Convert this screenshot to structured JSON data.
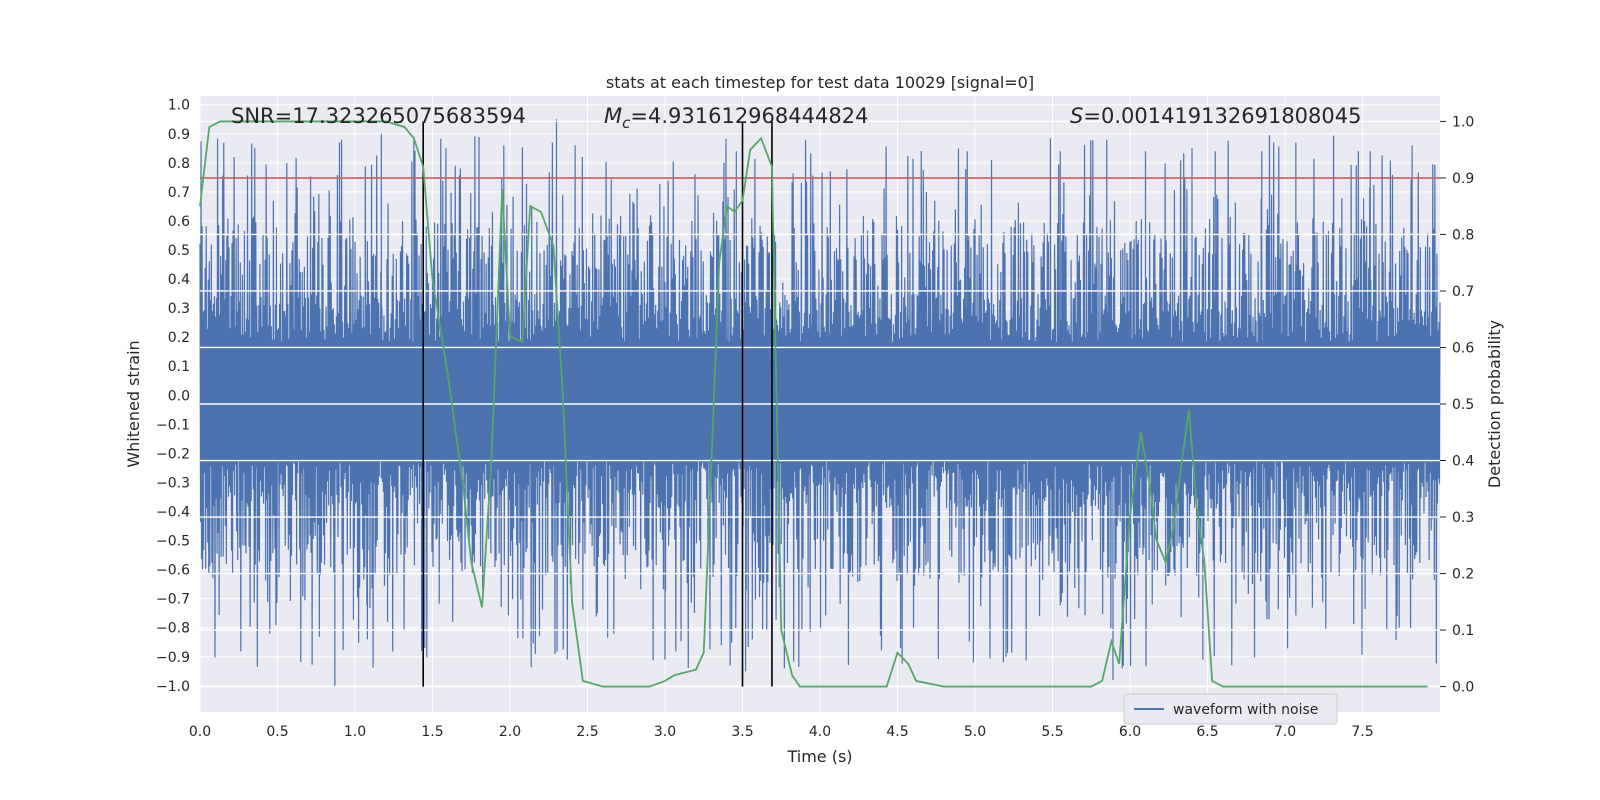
{
  "chart_data": {
    "type": "line",
    "title": "stats at each timestep for test data 10029 [signal=0]",
    "xlabel": "Time (s)",
    "ylabel": "Whitened strain",
    "y2label": "Detection probability",
    "xlim": [
      0.0,
      8.0
    ],
    "ylim": [
      -1.09,
      1.03
    ],
    "y2lim": [
      -0.045,
      1.045
    ],
    "xticks": [
      0.0,
      0.5,
      1.0,
      1.5,
      2.0,
      2.5,
      3.0,
      3.5,
      4.0,
      4.5,
      5.0,
      5.5,
      6.0,
      6.5,
      7.0,
      7.5
    ],
    "yticks": [
      1.0,
      0.9,
      0.8,
      0.7,
      0.6,
      0.5,
      0.4,
      0.3,
      0.2,
      0.1,
      0.0,
      -0.1,
      -0.2,
      -0.3,
      -0.4,
      -0.5,
      -0.6,
      -0.7,
      -0.8,
      -0.9,
      -1.0
    ],
    "y2ticks": [
      1.0,
      0.9,
      0.8,
      0.7,
      0.6,
      0.5,
      0.4,
      0.3,
      0.2,
      0.1,
      0.0
    ],
    "legend": {
      "label": "waveform with noise",
      "loc": "lower right"
    },
    "annotations": [
      {
        "id": "snr",
        "prefix": "SNR=",
        "value": "17.323265075683594"
      },
      {
        "id": "mc",
        "prefix": "=",
        "symbol": "M",
        "sub": "c",
        "value": "4.931612968444824"
      },
      {
        "id": "s",
        "prefix": "=",
        "symbol": "S",
        "value": "0.001419132691808045"
      }
    ],
    "threshold": {
      "y2": 0.9,
      "color": "#c44e52"
    },
    "vlines": {
      "x": [
        1.44,
        3.5,
        3.69
      ],
      "color": "#000000"
    },
    "series": [
      {
        "name": "waveform with noise",
        "color": "#4c72b0",
        "type": "strain",
        "seed": 10029,
        "samples": 2400,
        "base_amp": 0.37,
        "spike_events": [
          {
            "x": 0.87,
            "y": -1.0
          },
          {
            "x": 1.45,
            "y": -0.87
          },
          {
            "x": 2.3,
            "y": 0.95
          },
          {
            "x": 0.9,
            "y": 0.87
          },
          {
            "x": 1.17,
            "y": 0.9
          },
          {
            "x": 1.38,
            "y": 0.89
          },
          {
            "x": 1.96,
            "y": 0.86
          },
          {
            "x": 2.42,
            "y": 0.86
          },
          {
            "x": 1.08,
            "y": -0.84
          },
          {
            "x": 3.0,
            "y": -0.91
          },
          {
            "x": 3.42,
            "y": -0.93
          },
          {
            "x": 3.52,
            "y": -0.95
          },
          {
            "x": 3.38,
            "y": 0.8
          },
          {
            "x": 3.46,
            "y": 0.84
          },
          {
            "x": 4.52,
            "y": -0.87
          },
          {
            "x": 5.2,
            "y": -0.9
          },
          {
            "x": 5.89,
            "y": -0.98
          },
          {
            "x": 5.95,
            "y": -0.94
          },
          {
            "x": 5.85,
            "y": 0.88
          },
          {
            "x": 5.55,
            "y": 0.84
          },
          {
            "x": 6.1,
            "y": 0.84
          },
          {
            "x": 6.4,
            "y": 0.85
          },
          {
            "x": 6.55,
            "y": 0.84
          },
          {
            "x": 6.85,
            "y": 0.84
          },
          {
            "x": 7.07,
            "y": 0.87
          },
          {
            "x": 7.55,
            "y": 0.84
          },
          {
            "x": 7.82,
            "y": 0.86
          },
          {
            "x": 4.95,
            "y": 0.84
          },
          {
            "x": 6.47,
            "y": -0.91
          },
          {
            "x": 1.21,
            "y": -0.78
          }
        ]
      },
      {
        "name": "detection probability",
        "color": "#55a868",
        "axis": "right",
        "x": [
          0.0,
          0.06,
          0.13,
          0.25,
          0.5,
          0.75,
          1.0,
          1.2,
          1.32,
          1.38,
          1.44,
          1.5,
          1.6,
          1.7,
          1.75,
          1.82,
          1.88,
          1.95,
          2.0,
          2.08,
          2.13,
          2.2,
          2.28,
          2.34,
          2.4,
          2.47,
          2.6,
          2.75,
          2.9,
          3.0,
          3.06,
          3.2,
          3.25,
          3.3,
          3.35,
          3.4,
          3.45,
          3.5,
          3.55,
          3.62,
          3.69,
          3.75,
          3.82,
          3.87,
          3.95,
          4.1,
          4.3,
          4.43,
          4.5,
          4.57,
          4.62,
          4.8,
          5.0,
          5.3,
          5.6,
          5.75,
          5.82,
          5.88,
          5.93,
          6.0,
          6.07,
          6.13,
          6.17,
          6.23,
          6.28,
          6.33,
          6.38,
          6.43,
          6.48,
          6.53,
          6.6,
          6.8,
          7.0,
          7.3,
          7.6,
          7.92
        ],
        "y": [
          0.85,
          0.99,
          1.0,
          1.0,
          1.0,
          1.0,
          1.0,
          1.0,
          0.99,
          0.97,
          0.92,
          0.72,
          0.55,
          0.35,
          0.22,
          0.14,
          0.4,
          0.88,
          0.62,
          0.61,
          0.85,
          0.84,
          0.78,
          0.52,
          0.15,
          0.01,
          0.0,
          0.0,
          0.0,
          0.01,
          0.02,
          0.03,
          0.06,
          0.4,
          0.75,
          0.85,
          0.84,
          0.86,
          0.95,
          0.97,
          0.92,
          0.1,
          0.02,
          0.0,
          0.0,
          0.0,
          0.0,
          0.0,
          0.06,
          0.04,
          0.01,
          0.0,
          0.0,
          0.0,
          0.0,
          0.0,
          0.01,
          0.08,
          0.04,
          0.3,
          0.45,
          0.35,
          0.26,
          0.22,
          0.28,
          0.39,
          0.49,
          0.32,
          0.22,
          0.01,
          0.0,
          0.0,
          0.0,
          0.0,
          0.0,
          0.0
        ]
      }
    ]
  }
}
